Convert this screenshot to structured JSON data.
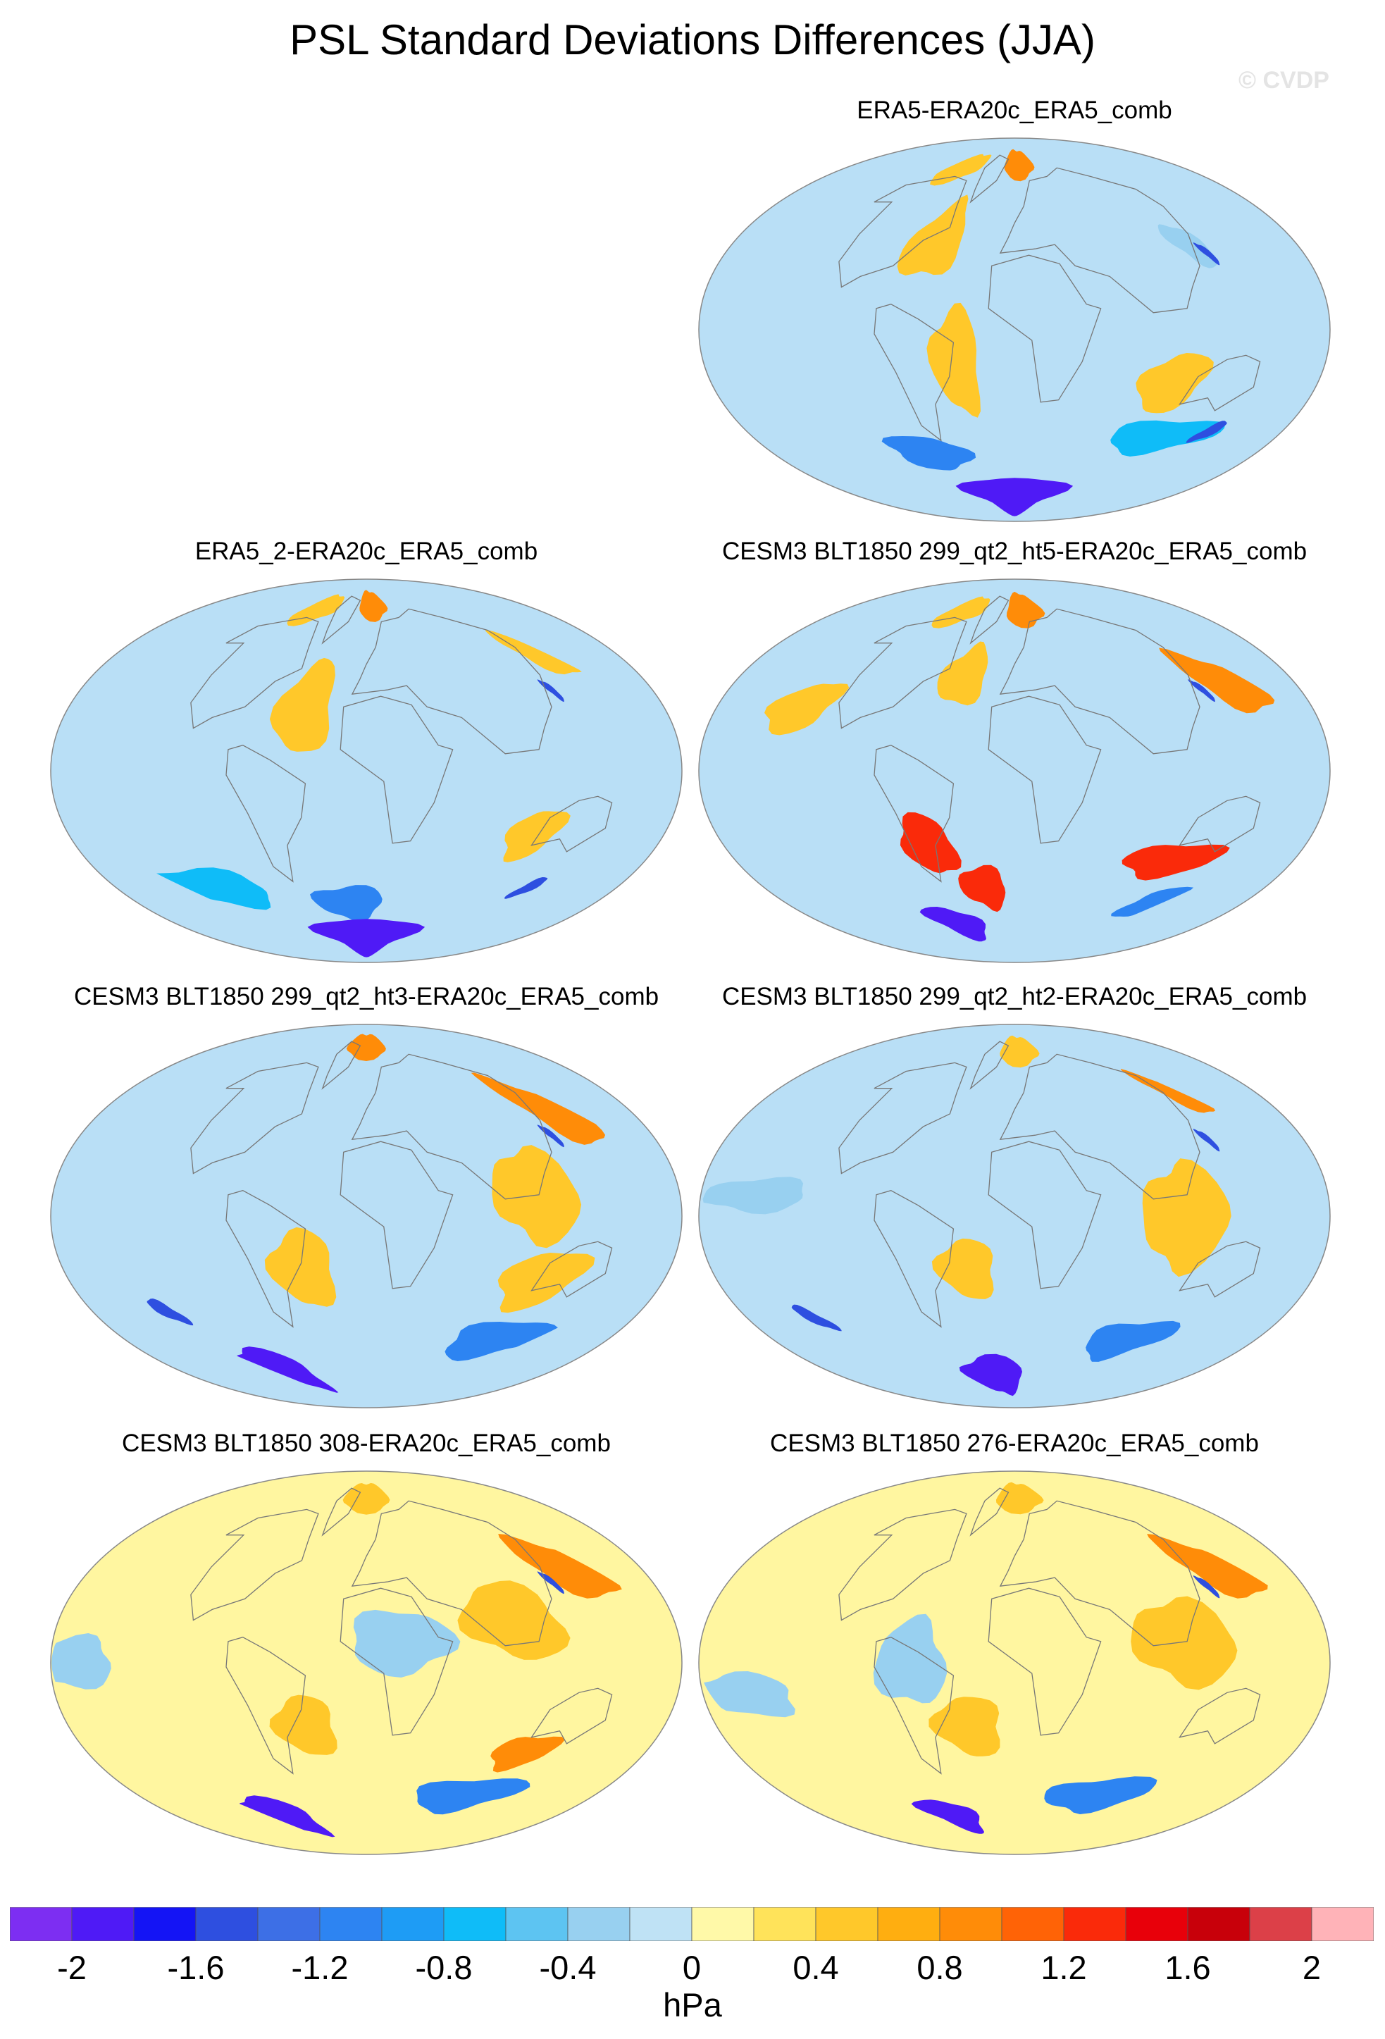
{
  "title": "PSL Standard Deviations Differences (JJA)",
  "watermark": "© CVDP",
  "colors": {
    "land_outline": "#777777",
    "map_border": "#888888"
  },
  "panels": [
    {
      "title": "ERA5-ERA20c_ERA5_comb",
      "col": 1,
      "row": 0,
      "background": "#b9dff6",
      "features": [
        {
          "value": 0.8,
          "lon": 10,
          "lat": 78,
          "rx": 38,
          "ry": 7
        },
        {
          "value": 0.4,
          "lon": -120,
          "lat": 76,
          "rx": 40,
          "ry": 7
        },
        {
          "value": 0.4,
          "lon": -60,
          "lat": 42,
          "rx": 20,
          "ry": 18
        },
        {
          "value": 0.4,
          "lon": 100,
          "lat": -25,
          "rx": 20,
          "ry": 14
        },
        {
          "value": 0.4,
          "lon": -35,
          "lat": -15,
          "rx": 14,
          "ry": 25
        },
        {
          "value": -0.4,
          "lon": 130,
          "lat": 40,
          "rx": 12,
          "ry": 10
        },
        {
          "value": -1.6,
          "lon": 136,
          "lat": 36,
          "rx": 3,
          "ry": 5
        },
        {
          "value": -0.8,
          "lon": 130,
          "lat": -50,
          "rx": 45,
          "ry": 8
        },
        {
          "value": -1.6,
          "lon": 165,
          "lat": -48,
          "rx": 7,
          "ry": 5
        },
        {
          "value": -1.2,
          "lon": -90,
          "lat": -58,
          "rx": 40,
          "ry": 8
        },
        {
          "value": -2.0,
          "lon": 0,
          "lat": -78,
          "rx": 110,
          "ry": 9
        }
      ]
    },
    {
      "title": "ERA5_2-ERA20c_ERA5_comb",
      "col": 0,
      "row": 1,
      "background": "#b9dff6",
      "features": [
        {
          "value": 0.8,
          "lon": 15,
          "lat": 78,
          "rx": 35,
          "ry": 7
        },
        {
          "value": 0.4,
          "lon": -110,
          "lat": 76,
          "rx": 40,
          "ry": 7
        },
        {
          "value": 0.4,
          "lon": 170,
          "lat": 55,
          "rx": 20,
          "ry": 10
        },
        {
          "value": 0.4,
          "lon": -40,
          "lat": 30,
          "rx": 18,
          "ry": 22
        },
        {
          "value": 0.4,
          "lon": 110,
          "lat": -30,
          "rx": 16,
          "ry": 12
        },
        {
          "value": -1.6,
          "lon": 134,
          "lat": 38,
          "rx": 3,
          "ry": 5
        },
        {
          "value": -0.8,
          "lon": -150,
          "lat": -55,
          "rx": 50,
          "ry": 9
        },
        {
          "value": -1.6,
          "lon": 160,
          "lat": -55,
          "rx": 8,
          "ry": 5
        },
        {
          "value": -1.2,
          "lon": -20,
          "lat": -62,
          "rx": 40,
          "ry": 8
        },
        {
          "value": -2.0,
          "lon": 0,
          "lat": -78,
          "rx": 110,
          "ry": 9
        }
      ]
    },
    {
      "title": "CESM3 BLT1850 299_qt2_ht5-ERA20c_ERA5_comb",
      "col": 1,
      "row": 1,
      "background": "#b9dff6",
      "features": [
        {
          "value": 0.8,
          "lon": 20,
          "lat": 76,
          "rx": 40,
          "ry": 8
        },
        {
          "value": 0.4,
          "lon": -110,
          "lat": 75,
          "rx": 40,
          "ry": 7
        },
        {
          "value": 0.8,
          "lon": 160,
          "lat": 42,
          "rx": 22,
          "ry": 14
        },
        {
          "value": 0.4,
          "lon": -140,
          "lat": 30,
          "rx": 20,
          "ry": 12
        },
        {
          "value": 0.4,
          "lon": -40,
          "lat": 45,
          "rx": 18,
          "ry": 14
        },
        {
          "value": 1.2,
          "lon": 120,
          "lat": -42,
          "rx": 35,
          "ry": 8
        },
        {
          "value": 1.2,
          "lon": -60,
          "lat": -35,
          "rx": 18,
          "ry": 14
        },
        {
          "value": 1.2,
          "lon": -30,
          "lat": -55,
          "rx": 22,
          "ry": 10
        },
        {
          "value": -1.6,
          "lon": 136,
          "lat": 38,
          "rx": 3,
          "ry": 5
        },
        {
          "value": -1.2,
          "lon": 170,
          "lat": -62,
          "rx": 30,
          "ry": 7
        },
        {
          "value": -2.0,
          "lon": -100,
          "lat": -72,
          "rx": 40,
          "ry": 8
        }
      ]
    },
    {
      "title": "CESM3 BLT1850 299_qt2_ht3-ERA20c_ERA5_comb",
      "col": 0,
      "row": 2,
      "background": "#b9dff6",
      "features": [
        {
          "value": 0.8,
          "lon": 0,
          "lat": 80,
          "rx": 60,
          "ry": 6
        },
        {
          "value": 0.8,
          "lon": 160,
          "lat": 50,
          "rx": 22,
          "ry": 16
        },
        {
          "value": 0.4,
          "lon": 100,
          "lat": 10,
          "rx": 25,
          "ry": 22
        },
        {
          "value": 0.4,
          "lon": 115,
          "lat": -30,
          "rx": 25,
          "ry": 14
        },
        {
          "value": 0.4,
          "lon": -40,
          "lat": -25,
          "rx": 20,
          "ry": 18
        },
        {
          "value": -1.6,
          "lon": 134,
          "lat": 38,
          "rx": 3,
          "ry": 5
        },
        {
          "value": -1.2,
          "lon": 140,
          "lat": -58,
          "rx": 50,
          "ry": 9
        },
        {
          "value": -2.0,
          "lon": -150,
          "lat": -72,
          "rx": 45,
          "ry": 10
        },
        {
          "value": -1.6,
          "lon": -160,
          "lat": -45,
          "rx": 8,
          "ry": 6
        }
      ]
    },
    {
      "title": "CESM3 BLT1850 299_qt2_ht2-ERA20c_ERA5_comb",
      "col": 1,
      "row": 2,
      "background": "#b9dff6",
      "features": [
        {
          "value": 0.4,
          "lon": 10,
          "lat": 78,
          "rx": 50,
          "ry": 7
        },
        {
          "value": 0.8,
          "lon": 170,
          "lat": 58,
          "rx": 15,
          "ry": 10
        },
        {
          "value": 0.4,
          "lon": 100,
          "lat": 0,
          "rx": 25,
          "ry": 25
        },
        {
          "value": 0.4,
          "lon": -30,
          "lat": -25,
          "rx": 18,
          "ry": 14
        },
        {
          "value": -0.4,
          "lon": -150,
          "lat": 10,
          "rx": 30,
          "ry": 8
        },
        {
          "value": -1.6,
          "lon": 136,
          "lat": 36,
          "rx": 3,
          "ry": 5
        },
        {
          "value": -1.2,
          "lon": 120,
          "lat": -58,
          "rx": 40,
          "ry": 9
        },
        {
          "value": -1.6,
          "lon": -170,
          "lat": -48,
          "rx": 8,
          "ry": 6
        },
        {
          "value": -2.0,
          "lon": -40,
          "lat": -75,
          "rx": 60,
          "ry": 9
        }
      ]
    },
    {
      "title": "CESM3 BLT1850 308-ERA20c_ERA5_comb",
      "col": 0,
      "row": 3,
      "background": "#fff6a0",
      "features": [
        {
          "value": 0.4,
          "lon": 0,
          "lat": 78,
          "rx": 60,
          "ry": 7
        },
        {
          "value": 0.8,
          "lon": 160,
          "lat": 45,
          "rx": 28,
          "ry": 14
        },
        {
          "value": 0.4,
          "lon": 90,
          "lat": 20,
          "rx": 30,
          "ry": 18
        },
        {
          "value": 0.8,
          "lon": 120,
          "lat": -42,
          "rx": 22,
          "ry": 8
        },
        {
          "value": 0.4,
          "lon": -40,
          "lat": -30,
          "rx": 20,
          "ry": 14
        },
        {
          "value": -0.4,
          "lon": -170,
          "lat": 0,
          "rx": 25,
          "ry": 12
        },
        {
          "value": -0.4,
          "lon": 20,
          "lat": 10,
          "rx": 30,
          "ry": 15
        },
        {
          "value": -1.6,
          "lon": 134,
          "lat": 38,
          "rx": 3,
          "ry": 5
        },
        {
          "value": -1.2,
          "lon": 120,
          "lat": -62,
          "rx": 60,
          "ry": 8
        },
        {
          "value": -2.0,
          "lon": -150,
          "lat": -72,
          "rx": 50,
          "ry": 9
        }
      ]
    },
    {
      "title": "CESM3 BLT1850 276-ERA20c_ERA5_comb",
      "col": 1,
      "row": 3,
      "background": "#fff6a0",
      "features": [
        {
          "value": 0.4,
          "lon": 10,
          "lat": 78,
          "rx": 60,
          "ry": 7
        },
        {
          "value": 0.8,
          "lon": 160,
          "lat": 45,
          "rx": 25,
          "ry": 14
        },
        {
          "value": 0.4,
          "lon": 100,
          "lat": 10,
          "rx": 30,
          "ry": 20
        },
        {
          "value": 0.4,
          "lon": -30,
          "lat": -30,
          "rx": 22,
          "ry": 14
        },
        {
          "value": -0.4,
          "lon": -60,
          "lat": 0,
          "rx": 20,
          "ry": 20
        },
        {
          "value": -0.4,
          "lon": -160,
          "lat": -15,
          "rx": 30,
          "ry": 10
        },
        {
          "value": -1.6,
          "lon": 136,
          "lat": 36,
          "rx": 3,
          "ry": 5
        },
        {
          "value": -1.2,
          "lon": 100,
          "lat": -62,
          "rx": 60,
          "ry": 8
        },
        {
          "value": -2.0,
          "lon": -110,
          "lat": -72,
          "rx": 40,
          "ry": 8
        }
      ]
    }
  ],
  "colorbar": {
    "units": "hPa",
    "tick_labels": [
      "-2",
      "-1.6",
      "-1.2",
      "-0.8",
      "-0.4",
      "0",
      "0.4",
      "0.8",
      "1.2",
      "1.6",
      "2"
    ],
    "tick_values": [
      -2,
      -1.6,
      -1.2,
      -0.8,
      -0.4,
      0,
      0.4,
      0.8,
      1.2,
      1.6,
      2
    ],
    "levels": [
      -2.2,
      -2.0,
      -1.8,
      -1.6,
      -1.4,
      -1.2,
      -1.0,
      -0.8,
      -0.6,
      -0.4,
      -0.2,
      0,
      0.2,
      0.4,
      0.6,
      0.8,
      1.0,
      1.2,
      1.4,
      1.6,
      1.8,
      2.0,
      2.2
    ],
    "colors": [
      "#7d2ef2",
      "#4f1af6",
      "#1414f5",
      "#2e4fe0",
      "#3d6fe6",
      "#2d84f2",
      "#1e9cf5",
      "#0fbcf8",
      "#5dc4f2",
      "#98d0f0",
      "#bfe2f5",
      "#fff9a8",
      "#ffe35a",
      "#ffc82a",
      "#ffae10",
      "#ff8c08",
      "#ff6306",
      "#fa2a0a",
      "#e8000a",
      "#c8000a",
      "#dc4048",
      "#ffb3b8"
    ]
  }
}
